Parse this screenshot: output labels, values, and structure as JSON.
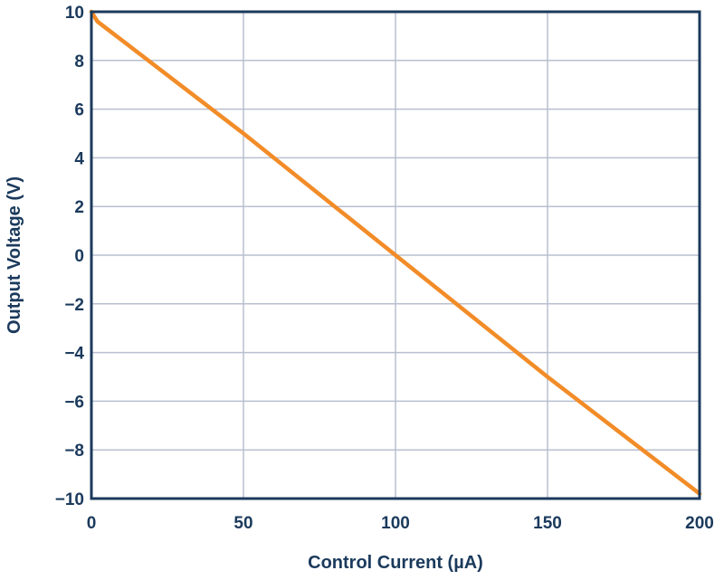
{
  "chart_data": {
    "type": "line",
    "title": "",
    "xlabel": "Control Current (µA)",
    "ylabel": "Output Voltage (V)",
    "xlim": [
      0,
      200
    ],
    "ylim": [
      -10,
      10
    ],
    "x_ticks": [
      0,
      50,
      100,
      150,
      200
    ],
    "y_ticks": [
      10,
      8,
      6,
      4,
      2,
      0,
      -2,
      -4,
      -6,
      -8,
      -10
    ],
    "x_tick_labels": [
      "0",
      "50",
      "100",
      "150",
      "200"
    ],
    "y_tick_labels": [
      "10",
      "8",
      "6",
      "4",
      "2",
      "0",
      "−2",
      "−4",
      "−6",
      "−8",
      "−10"
    ],
    "grid": true,
    "series": [
      {
        "x": [
          0,
          2,
          50,
          100,
          150,
          200
        ],
        "y": [
          10,
          9.6,
          5,
          0,
          -5,
          -9.8
        ],
        "color": "#f28c28"
      }
    ],
    "colors": {
      "axis": "#1b3a5c",
      "grid": "#b9bfcf",
      "line": "#f28c28"
    }
  }
}
